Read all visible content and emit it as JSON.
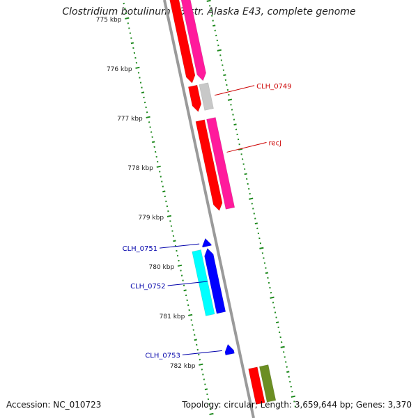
{
  "title": "Clostridium botulinum E3 str. Alaska E43, complete genome",
  "footer": {
    "accession": "Accession: NC_010723",
    "summary": "Topology: circular; Length: 3,659,644 bp; Genes: 3,370"
  },
  "colors": {
    "backbone": "#9a9a9a",
    "tick": "#1f8a1f",
    "feature_red": "#ff0000",
    "feature_pink": "#ff1a9c",
    "feature_grey": "#c8c8c8",
    "feature_blue": "#0000ff",
    "feature_cyan": "#00ffff",
    "feature_olive": "#6b8e23",
    "label_red": "#cc0000",
    "label_blue": "#0000aa"
  },
  "ruler": {
    "unit": "kbp",
    "ticks": [
      {
        "value": 775,
        "label": "775 kbp"
      },
      {
        "value": 776,
        "label": "776 kbp"
      },
      {
        "value": 777,
        "label": "777 kbp"
      },
      {
        "value": 778,
        "label": "778 kbp"
      },
      {
        "value": 779,
        "label": "779 kbp"
      },
      {
        "value": 780,
        "label": "780 kbp"
      },
      {
        "value": 781,
        "label": "781 kbp"
      },
      {
        "value": 782,
        "label": "782 kbp"
      }
    ]
  },
  "features": [
    {
      "name": "feat-1",
      "strand": "forward",
      "track": "inner",
      "color": "red",
      "start": 774.6,
      "end": 776.52,
      "arrow": true
    },
    {
      "name": "feat-1-outer",
      "strand": "forward",
      "track": "outer",
      "color": "pink",
      "start": 774.6,
      "end": 776.52,
      "arrow": true
    },
    {
      "name": "clh-0749-inner",
      "strand": "forward",
      "track": "inner",
      "color": "red",
      "start": 776.58,
      "end": 777.1,
      "arrow": true
    },
    {
      "name": "clh-0749-outer",
      "strand": "forward",
      "track": "outer",
      "color": "grey",
      "start": 776.58,
      "end": 777.1,
      "arrow": false
    },
    {
      "name": "recj-inner",
      "strand": "forward",
      "track": "inner",
      "color": "red",
      "start": 777.28,
      "end": 779.1,
      "arrow": true
    },
    {
      "name": "recj-outer",
      "strand": "forward",
      "track": "outer",
      "color": "pink",
      "start": 777.28,
      "end": 779.1,
      "arrow": false
    },
    {
      "name": "clh-0751",
      "strand": "reverse",
      "track": "inner",
      "color": "blue",
      "start": 779.58,
      "end": 779.74,
      "arrow": true
    },
    {
      "name": "clh-0752-blue",
      "strand": "reverse",
      "track": "inner",
      "color": "blue",
      "start": 779.78,
      "end": 781.08,
      "arrow": true
    },
    {
      "name": "clh-0752-cyan",
      "strand": "reverse",
      "track": "outer",
      "color": "cyan",
      "start": 779.78,
      "end": 781.08,
      "arrow": false
    },
    {
      "name": "clh-0753",
      "strand": "reverse",
      "track": "inner",
      "color": "blue",
      "start": 781.72,
      "end": 781.92,
      "arrow": true
    },
    {
      "name": "bottom-red",
      "strand": "forward",
      "track": "inner",
      "color": "red",
      "start": 782.28,
      "end": 783.0,
      "arrow": false
    },
    {
      "name": "bottom-olive",
      "strand": "forward",
      "track": "outer",
      "color": "olive",
      "start": 782.28,
      "end": 783.0,
      "arrow": false
    }
  ],
  "labels": [
    {
      "text": "CLH_0749",
      "color": "label_red",
      "side": "right",
      "pos": 776.85
    },
    {
      "text": "recJ",
      "color": "label_red",
      "side": "right",
      "pos": 778.0
    },
    {
      "text": "CLH_0751",
      "color": "label_blue",
      "side": "left",
      "pos": 779.66
    },
    {
      "text": "CLH_0752",
      "color": "label_blue",
      "side": "left",
      "pos": 780.42
    },
    {
      "text": "CLH_0753",
      "color": "label_blue",
      "side": "left",
      "pos": 781.82
    }
  ]
}
